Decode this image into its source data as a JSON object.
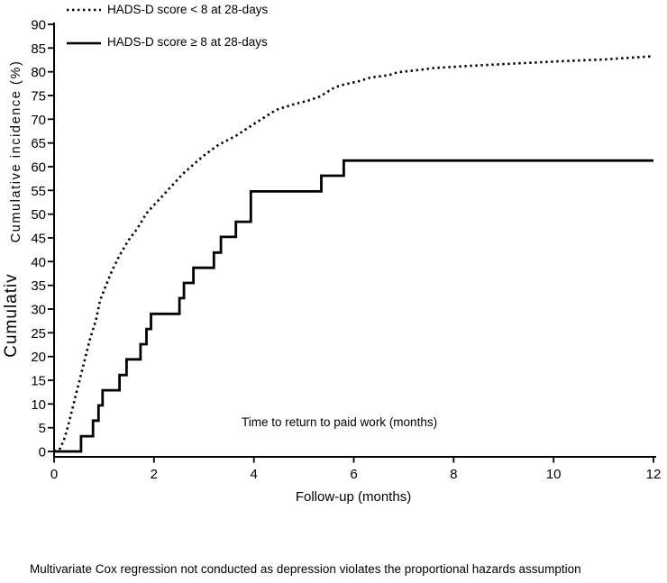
{
  "figure": {
    "footnote": "Multivariate Cox regression not conducted as depression violates the proportional hazards assumption"
  },
  "colors": {
    "line": "#000000",
    "background": "#ffffff",
    "text": "#000000"
  },
  "chart_data": {
    "type": "line",
    "subtype": "kaplan-meier-cumulative-incidence",
    "title": "",
    "xlabel": "Follow-up (months)",
    "ylabel": "Cumulative incidence (%)",
    "ylabel_partial_duplicate": "Cumulativ",
    "annotation": "Time to return to paid work (months)",
    "xlim": [
      0,
      12
    ],
    "ylim": [
      0,
      90
    ],
    "x_ticks": [
      0,
      2,
      4,
      6,
      8,
      10,
      12
    ],
    "y_ticks": [
      0,
      5,
      10,
      15,
      20,
      25,
      30,
      35,
      40,
      45,
      50,
      55,
      60,
      65,
      70,
      75,
      80,
      85,
      90
    ],
    "grid": false,
    "legend_position": "top-left",
    "series": [
      {
        "name": "HADS-D score < 8 at 28-days",
        "line_style": "dotted",
        "step": false,
        "points": [
          [
            0,
            0
          ],
          [
            0.12,
            0.6
          ],
          [
            0.2,
            2.5
          ],
          [
            0.27,
            5.0
          ],
          [
            0.36,
            8.7
          ],
          [
            0.45,
            12.5
          ],
          [
            0.54,
            16.2
          ],
          [
            0.63,
            20.0
          ],
          [
            0.72,
            23.7
          ],
          [
            0.84,
            27.8
          ],
          [
            0.92,
            31.8
          ],
          [
            1.04,
            35.0
          ],
          [
            1.16,
            38.1
          ],
          [
            1.31,
            41.3
          ],
          [
            1.49,
            44.5
          ],
          [
            1.67,
            47.0
          ],
          [
            1.85,
            50.2
          ],
          [
            2.21,
            54.3
          ],
          [
            2.57,
            58.4
          ],
          [
            2.98,
            62.2
          ],
          [
            3.29,
            64.6
          ],
          [
            3.64,
            66.5
          ],
          [
            4.0,
            69.0
          ],
          [
            4.45,
            72.0
          ],
          [
            4.81,
            73.2
          ],
          [
            5.08,
            73.9
          ],
          [
            5.32,
            74.8
          ],
          [
            5.62,
            76.7
          ],
          [
            5.8,
            77.3
          ],
          [
            6.1,
            78.0
          ],
          [
            6.34,
            78.8
          ],
          [
            6.7,
            79.3
          ],
          [
            6.88,
            79.9
          ],
          [
            7.24,
            80.3
          ],
          [
            7.6,
            80.8
          ],
          [
            8.26,
            81.2
          ],
          [
            9.33,
            81.8
          ],
          [
            10.1,
            82.2
          ],
          [
            11.0,
            82.6
          ],
          [
            11.9,
            83.2
          ],
          [
            12,
            83.4
          ]
        ]
      },
      {
        "name": "HADS-D score ≥ 8 at 28-days",
        "line_style": "solid",
        "step": true,
        "points": [
          [
            0,
            0
          ],
          [
            0.54,
            3.2
          ],
          [
            0.78,
            6.5
          ],
          [
            0.89,
            9.7
          ],
          [
            0.97,
            12.9
          ],
          [
            1.31,
            16.1
          ],
          [
            1.45,
            19.4
          ],
          [
            1.73,
            22.6
          ],
          [
            1.85,
            25.8
          ],
          [
            1.94,
            29.0
          ],
          [
            2.51,
            32.3
          ],
          [
            2.6,
            35.5
          ],
          [
            2.79,
            38.7
          ],
          [
            3.2,
            41.9
          ],
          [
            3.34,
            45.2
          ],
          [
            3.64,
            48.4
          ],
          [
            3.94,
            54.8
          ],
          [
            5.35,
            58.1
          ],
          [
            5.8,
            61.3
          ],
          [
            12,
            61.3
          ]
        ]
      }
    ]
  }
}
